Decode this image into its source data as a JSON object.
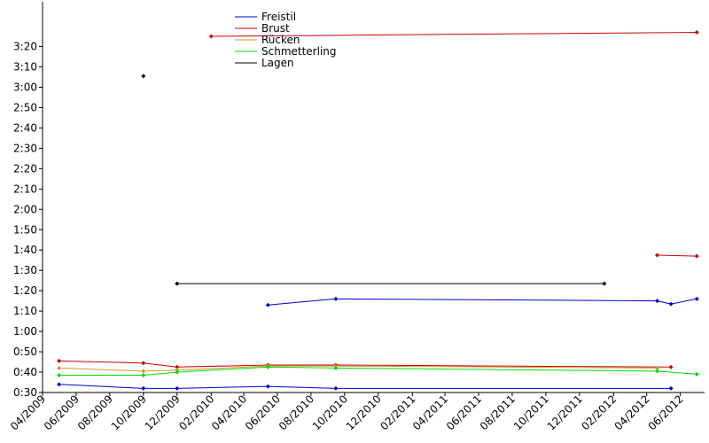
{
  "chart_data": {
    "type": "line",
    "title": "",
    "xlabel": "",
    "ylabel": "",
    "x_range": [
      "2009-04-01",
      "2012-07-15"
    ],
    "ylim_seconds": [
      30,
      222
    ],
    "grid": false,
    "legend_position": "top",
    "y_ticks": [
      "0:30",
      "0:40",
      "0:50",
      "1:00",
      "1:10",
      "1:20",
      "1:30",
      "1:40",
      "1:50",
      "2:00",
      "2:10",
      "2:20",
      "2:30",
      "2:40",
      "2:50",
      "3:00",
      "3:10",
      "3:20"
    ],
    "x_ticks": [
      "04/2009",
      "06/2009",
      "08/2009",
      "10/2009",
      "12/2009",
      "02/2010",
      "04/2010",
      "06/2010",
      "08/2010",
      "10/2010",
      "12/2010",
      "02/2011",
      "04/2011",
      "06/2011",
      "08/2011",
      "10/2011",
      "12/2011",
      "02/2012",
      "04/2012",
      "06/2012"
    ],
    "series": [
      {
        "name": "Freistil",
        "color": "#0000cc",
        "segments": [
          [
            [
              "2009-05-01",
              "0:34"
            ],
            [
              "2009-10-01",
              "0:32"
            ],
            [
              "2009-12-01",
              "0:32"
            ],
            [
              "2010-05-15",
              "0:33"
            ],
            [
              "2010-09-15",
              "0:32"
            ],
            [
              "2012-05-15",
              "0:32"
            ]
          ],
          [
            [
              "2010-05-15",
              "1:13"
            ],
            [
              "2010-09-15",
              "1:16"
            ],
            [
              "2012-04-20",
              "1:15"
            ],
            [
              "2012-05-15",
              "1:13.5"
            ],
            [
              "2012-07-01",
              "1:16"
            ]
          ]
        ]
      },
      {
        "name": "Brust",
        "color": "#cc0000",
        "segments": [
          [
            [
              "2009-05-01",
              "0:45.5"
            ],
            [
              "2009-10-01",
              "0:44.5"
            ],
            [
              "2009-12-01",
              "0:42.5"
            ],
            [
              "2010-05-15",
              "0:43.5"
            ],
            [
              "2010-09-15",
              "0:43.5"
            ],
            [
              "2012-05-15",
              "0:42.5"
            ]
          ],
          [
            [
              "2012-04-20",
              "1:37.5"
            ],
            [
              "2012-07-01",
              "1:37"
            ]
          ],
          [
            [
              "2010-02-01",
              "3:25"
            ],
            [
              "2012-07-01",
              "3:27"
            ]
          ]
        ]
      },
      {
        "name": "Rücken",
        "color": "#cc9933",
        "segments": [
          [
            [
              "2009-05-01",
              "0:42"
            ],
            [
              "2009-10-01",
              "0:40.5"
            ],
            [
              "2009-12-01",
              "0:41"
            ],
            [
              "2010-05-15",
              "0:43"
            ],
            [
              "2010-09-15",
              "0:43"
            ],
            [
              "2012-04-20",
              "0:42"
            ]
          ]
        ]
      },
      {
        "name": "Schmetterling",
        "color": "#00dd00",
        "segments": [
          [
            [
              "2009-05-01",
              "0:38.5"
            ],
            [
              "2009-10-01",
              "0:38.5"
            ],
            [
              "2009-12-01",
              "0:40"
            ],
            [
              "2010-05-15",
              "0:42.5"
            ],
            [
              "2010-09-15",
              "0:42"
            ],
            [
              "2012-04-20",
              "0:40.5"
            ],
            [
              "2012-07-01",
              "0:39"
            ]
          ]
        ]
      },
      {
        "name": "Lagen",
        "color": "#000000",
        "segments": [
          [
            [
              "2009-10-01",
              "3:05.5"
            ]
          ],
          [
            [
              "2009-12-01",
              "1:23.5"
            ],
            [
              "2012-01-15",
              "1:23.5"
            ]
          ]
        ]
      }
    ]
  }
}
